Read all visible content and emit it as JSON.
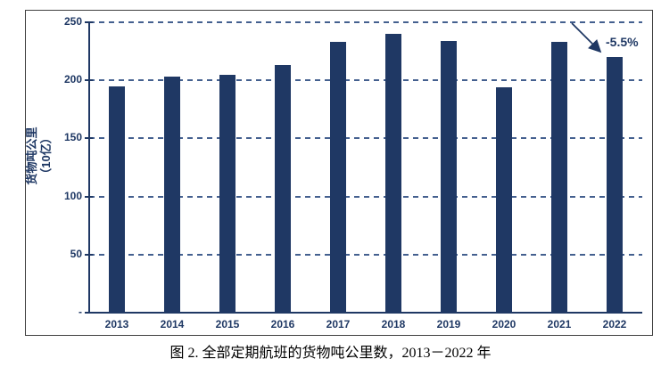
{
  "chart_data": {
    "type": "bar",
    "title": "图 2.    全部定期航班的货物吨公里数，2013－2022 年",
    "ylabel_lines": [
      "货物吨公里",
      "（10亿）"
    ],
    "categories": [
      "2013",
      "2014",
      "2015",
      "2016",
      "2017",
      "2018",
      "2019",
      "2020",
      "2021",
      "2022"
    ],
    "values": [
      195,
      203,
      205,
      213,
      233,
      240,
      234,
      194,
      233,
      220
    ],
    "ylim": [
      0,
      250
    ],
    "yticks": [
      {
        "value": 250,
        "label": "250"
      },
      {
        "value": 200,
        "label": "200"
      },
      {
        "value": 150,
        "label": "150"
      },
      {
        "value": 100,
        "label": "100"
      },
      {
        "value": 50,
        "label": "50"
      },
      {
        "value": 0,
        "label": "-"
      }
    ],
    "grid": "horizontal-dashed",
    "legend": "none",
    "annotation": {
      "text": "-5.5%",
      "target_category": "2022"
    },
    "colors": {
      "bar": "#1F3864",
      "gridline": "#44608F",
      "axis": "#1F3864",
      "label_text": "#1F3864",
      "caption_text": "#000000",
      "frame_border": "#404040"
    }
  }
}
